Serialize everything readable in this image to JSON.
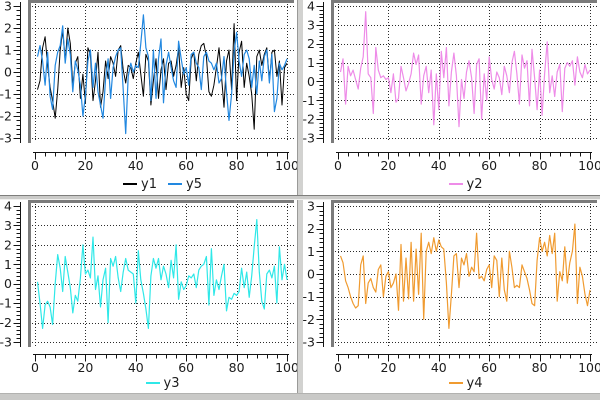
{
  "colors": {
    "background": "#ffffff",
    "divider": "#d2d2d0",
    "divider_shadow": "#8e8e8c",
    "canvas_frame": "#7b7b7b",
    "grid": "#2b2b2b",
    "axis": "#141414",
    "tick_label": "#1c1c1c"
  },
  "chart_data": [
    {
      "id": "plot-y1-y5",
      "position": "top-left",
      "type": "line",
      "x_start": 1,
      "x_step": 1,
      "x_range": [
        0,
        100
      ],
      "y_range": [
        -3,
        3
      ],
      "x_ticks": [
        0,
        20,
        40,
        60,
        80,
        100
      ],
      "y_ticks": [
        3,
        2,
        1,
        0,
        -1,
        -2,
        -3
      ],
      "x_minor_step": 4,
      "y_minor_step": 0.2,
      "grid": "dotted",
      "legend_position": "bottom-center",
      "series": [
        {
          "name": "y1",
          "color": "#000000",
          "values": [
            -0.8,
            -0.4,
            1.1,
            1.6,
            0.3,
            -0.7,
            -1.3,
            -2.1,
            -0.8,
            1.0,
            1.9,
            0.5,
            2.0,
            1.3,
            -0.6,
            0.4,
            0.7,
            -1.2,
            -0.1,
            -1.4,
            1.1,
            0.8,
            -1.3,
            -0.4,
            0.9,
            -1.6,
            -0.9,
            0.5,
            -0.3,
            0.7,
            0.4,
            -0.2,
            1.0,
            1.2,
            0.1,
            -0.5,
            0.3,
            0.2,
            -0.3,
            0.4,
            0.9,
            -0.1,
            -1.1,
            0.8,
            0.5,
            -1.5,
            -0.4,
            0.6,
            -1.2,
            0.1,
            0.6,
            -0.8,
            0.4,
            0.5,
            -0.2,
            0.3,
            1.1,
            -0.7,
            0.2,
            -1.0,
            -1.3,
            0.6,
            0.9,
            -0.4,
            0.8,
            1.2,
            1.3,
            0.7,
            -0.9,
            -1.1,
            -0.6,
            0.2,
            1.1,
            -0.2,
            -1.6,
            0.5,
            1.0,
            -0.8,
            2.2,
            -1.3,
            0.9,
            1.4,
            -0.7,
            0.4,
            -0.2,
            -1.0,
            -2.6,
            0.7,
            1.0,
            0.3,
            0.8,
            1.1,
            -0.4,
            0.9,
            1.0,
            -0.2,
            0.5,
            -1.5,
            0.2,
            0.4
          ]
        },
        {
          "name": "y5",
          "color": "#2288e0",
          "values": [
            0.7,
            1.2,
            0.5,
            -0.6,
            0.9,
            -1.1,
            -1.7,
            0.3,
            0.9,
            1.2,
            2.1,
            0.4,
            1.5,
            0.8,
            -0.9,
            0.5,
            0.1,
            -0.6,
            -2.0,
            -1.1,
            0.5,
            1.0,
            -0.7,
            0.4,
            -0.9,
            -1.5,
            -2.1,
            -0.3,
            0.6,
            -1.2,
            0.2,
            0.7,
            1.0,
            1.1,
            -0.8,
            -2.8,
            -0.2,
            0.4,
            0.0,
            0.3,
            0.2,
            1.3,
            2.6,
            1.1,
            0.7,
            -1.3,
            1.0,
            -1.2,
            0.6,
            1.5,
            -1.4,
            0.3,
            0.9,
            0.2,
            -0.4,
            -0.7,
            1.4,
            0.6,
            -0.1,
            0.2,
            -0.6,
            0.8,
            0.9,
            0.4,
            0.2,
            -0.8,
            0.7,
            0.9,
            0.5,
            0.4,
            0.1,
            0.4,
            -0.5,
            -0.3,
            0.7,
            -0.9,
            -2.2,
            -1.0,
            0.9,
            1.8,
            0.5,
            -0.2,
            0.8,
            1.0,
            0.6,
            -0.7,
            0.3,
            -1.0,
            0.5,
            -0.4,
            0.7,
            1.0,
            -0.5,
            0.8,
            -1.8,
            -1.2,
            0.4,
            0.1,
            0.3,
            0.6
          ]
        }
      ]
    },
    {
      "id": "plot-y2",
      "position": "top-right",
      "type": "line",
      "x_start": 1,
      "x_step": 1,
      "x_range": [
        0,
        100
      ],
      "y_range": [
        -3,
        4
      ],
      "x_ticks": [
        0,
        20,
        40,
        60,
        80,
        100
      ],
      "y_ticks": [
        4,
        3,
        2,
        1,
        0,
        -1,
        -2,
        -3
      ],
      "x_minor_step": 4,
      "y_minor_step": 0.2,
      "grid": "dotted",
      "legend_position": "bottom-center",
      "series": [
        {
          "name": "y2",
          "color": "#ee8ce8",
          "values": [
            0.5,
            1.2,
            -1.2,
            0.8,
            0.3,
            0.6,
            0.1,
            -0.4,
            0.7,
            1.3,
            3.7,
            0.4,
            0.2,
            -1.7,
            1.8,
            0.6,
            0.2,
            0.3,
            0.1,
            0.2,
            -0.6,
            0.4,
            -1.1,
            -0.9,
            0.8,
            0.2,
            -0.5,
            -0.1,
            0.4,
            1.5,
            0.9,
            1.4,
            -1.2,
            0.3,
            0.8,
            -0.6,
            0.6,
            -2.3,
            0.4,
            -1.5,
            1.6,
            0.2,
            1.8,
            -1.3,
            0.5,
            1.5,
            0.3,
            -2.4,
            0.1,
            -0.9,
            0.5,
            1.1,
            0.2,
            -1.7,
            0.9,
            1.2,
            -2.0,
            0.4,
            -1.0,
            1.3,
            0.1,
            -0.4,
            0.5,
            0.2,
            -0.7,
            0.8,
            0.3,
            -0.6,
            1.0,
            1.6,
            0.4,
            -1.2,
            1.4,
            0.7,
            1.1,
            -1.3,
            1.7,
            0.2,
            -1.5,
            0.6,
            -1.8,
            0.4,
            2.1,
            -0.6,
            0.3,
            -0.8,
            0.5,
            0.9,
            -1.6,
            0.7,
            1.0,
            0.8,
            1.1,
            -0.2,
            1.3,
            0.5,
            0.2,
            0.9,
            0.4,
            0.6
          ]
        }
      ]
    },
    {
      "id": "plot-y3",
      "position": "bottom-left",
      "type": "line",
      "x_start": 1,
      "x_step": 1,
      "x_range": [
        0,
        100
      ],
      "y_range": [
        -3,
        4
      ],
      "x_ticks": [
        0,
        20,
        40,
        60,
        80,
        100
      ],
      "y_ticks": [
        4,
        3,
        2,
        1,
        0,
        -1,
        -2,
        -3
      ],
      "x_minor_step": 4,
      "y_minor_step": 0.2,
      "grid": "dotted",
      "legend_position": "bottom-center",
      "series": [
        {
          "name": "y3",
          "color": "#2fe8e8",
          "values": [
            0.1,
            -1.0,
            -2.3,
            -1.1,
            -0.9,
            -1.2,
            -2.1,
            0.0,
            1.5,
            0.8,
            -0.4,
            1.4,
            0.6,
            -0.2,
            -1.5,
            -0.6,
            -0.9,
            0.3,
            2.0,
            0.5,
            0.7,
            0.3,
            2.4,
            -0.3,
            0.4,
            -1.2,
            0.2,
            0.8,
            -2.0,
            1.3,
            0.9,
            1.4,
            0.3,
            -0.4,
            0.6,
            1.3,
            0.7,
            0.6,
            0.5,
            -1.0,
            1.7,
            0.2,
            -0.5,
            -1.3,
            -2.3,
            0.4,
            1.3,
            0.8,
            1.3,
            0.2,
            0.9,
            0.5,
            -0.2,
            1.2,
            0.3,
            2.0,
            -0.8,
            0.1,
            -0.3,
            -0.1,
            0.4,
            0.3,
            0.5,
            -0.2,
            0.7,
            0.9,
            1.0,
            1.4,
            -1.1,
            1.8,
            -0.6,
            0.2,
            -0.3,
            0.4,
            1.0,
            -1.4,
            -0.7,
            -0.8,
            -0.5,
            -0.6,
            -0.4,
            0.8,
            -0.2,
            0.6,
            -0.7,
            0.4,
            1.9,
            3.3,
            0.6,
            -0.9,
            -1.3,
            0.5,
            0.7,
            0.3,
            0.9,
            -1.0,
            1.9,
            0.2,
            1.0,
            0.2
          ]
        }
      ]
    },
    {
      "id": "plot-y4",
      "position": "bottom-right",
      "type": "line",
      "x_start": 1,
      "x_step": 1,
      "x_range": [
        0,
        100
      ],
      "y_range": [
        -3,
        3
      ],
      "x_ticks": [
        0,
        20,
        40,
        60,
        80,
        100
      ],
      "y_ticks": [
        3,
        2,
        1,
        0,
        -1,
        -2,
        -3
      ],
      "x_minor_step": 4,
      "y_minor_step": 0.2,
      "grid": "dotted",
      "legend_position": "bottom-center",
      "series": [
        {
          "name": "y4",
          "color": "#f09b30",
          "values": [
            0.8,
            0.5,
            -0.3,
            -0.6,
            -1.0,
            -1.3,
            -1.5,
            -1.4,
            0.4,
            0.8,
            -1.3,
            -0.4,
            -0.2,
            -0.6,
            -0.8,
            0.2,
            0.4,
            -1.0,
            -0.1,
            0.1,
            -0.6,
            -0.4,
            0.0,
            -1.6,
            1.3,
            -1.2,
            0.7,
            -1.1,
            1.4,
            -1.2,
            1.1,
            -0.9,
            1.8,
            -2.0,
            1.0,
            1.4,
            0.9,
            1.6,
            1.0,
            1.5,
            1.2,
            1.1,
            -0.4,
            -2.4,
            -0.9,
            0.8,
            0.9,
            -0.6,
            0.7,
            0.4,
            0.9,
            -0.1,
            0.3,
            0.1,
            1.8,
            -0.2,
            -0.1,
            -0.3,
            0.2,
            0.4,
            -0.6,
            0.8,
            0.6,
            -1.0,
            0.7,
            -0.7,
            -1.2,
            1.0,
            0.3,
            -0.6,
            -0.5,
            -0.6,
            0.4,
            0.1,
            -0.2,
            -0.7,
            -1.3,
            -1.4,
            0.6,
            1.6,
            1.0,
            1.4,
            0.8,
            1.7,
            0.9,
            1.8,
            -1.2,
            0.1,
            -0.3,
            1.2,
            -0.4,
            0.5,
            1.0,
            2.2,
            -1.3,
            0.3,
            -0.1,
            -0.9,
            -1.4,
            -0.7
          ]
        }
      ]
    }
  ]
}
